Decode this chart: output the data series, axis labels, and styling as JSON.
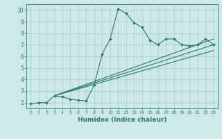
{
  "title": "",
  "xlabel": "Humidex (Indice chaleur)",
  "background_color": "#cce8e8",
  "grid_color": "#aacccc",
  "line_color": "#2a7a6a",
  "xlim": [
    -0.5,
    23.5
  ],
  "ylim": [
    1.5,
    10.5
  ],
  "yticks": [
    2,
    3,
    4,
    5,
    6,
    7,
    8,
    9,
    10
  ],
  "xticks": [
    0,
    1,
    2,
    3,
    4,
    5,
    6,
    7,
    8,
    9,
    10,
    11,
    12,
    13,
    14,
    15,
    16,
    17,
    18,
    19,
    20,
    21,
    22,
    23
  ],
  "main_series": {
    "x": [
      0,
      1,
      2,
      3,
      4,
      5,
      6,
      7,
      8,
      9,
      10,
      11,
      12,
      13,
      14,
      15,
      16,
      17,
      18,
      19,
      20,
      21,
      22,
      23
    ],
    "y": [
      1.9,
      2.0,
      2.0,
      2.6,
      2.5,
      2.3,
      2.2,
      2.15,
      3.55,
      6.2,
      7.5,
      10.1,
      9.7,
      8.9,
      8.5,
      7.4,
      7.0,
      7.5,
      7.5,
      7.0,
      6.9,
      7.0,
      7.5,
      7.0
    ]
  },
  "trend_lines": [
    {
      "x": [
        3,
        23
      ],
      "y": [
        2.6,
        7.5
      ]
    },
    {
      "x": [
        3,
        23
      ],
      "y": [
        2.6,
        7.0
      ]
    },
    {
      "x": [
        3,
        23
      ],
      "y": [
        2.6,
        6.5
      ]
    }
  ]
}
